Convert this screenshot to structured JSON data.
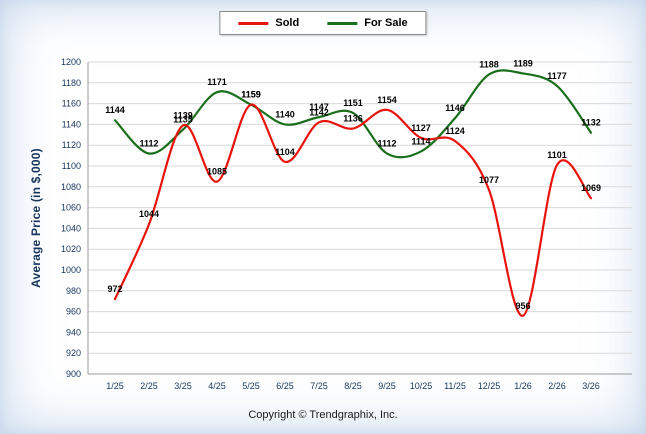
{
  "page": {
    "copyright": "Copyright © Trendgraphix, Inc."
  },
  "legend": [
    {
      "label": "Sold",
      "color": "#e8140c"
    },
    {
      "label": "For Sale",
      "color": "#1a6f1a"
    }
  ],
  "axis": {
    "text_color": "#17365d",
    "grid_color": "#d9d9d9",
    "axis_line_color": "#9a9a9a",
    "label_color": "#000000"
  },
  "chart_data": {
    "type": "line",
    "title": "",
    "xlabel": "",
    "ylabel": "Average Price (in $,000)",
    "ylim": [
      900,
      1200
    ],
    "ytick_step": 20,
    "grid": true,
    "legend_position": "top-center",
    "categories": [
      "1/25",
      "2/25",
      "3/25",
      "4/25",
      "5/25",
      "6/25",
      "7/25",
      "8/25",
      "9/25",
      "10/25",
      "11/25",
      "12/25",
      "1/26",
      "2/26",
      "3/26"
    ],
    "series": [
      {
        "name": "Sold",
        "color": "#e8140c",
        "values": [
          972,
          1044,
          1139,
          1085,
          1159,
          1104,
          1142,
          1136,
          1154,
          1127,
          1124,
          1077,
          956,
          1101,
          1069
        ]
      },
      {
        "name": "For Sale",
        "color": "#1a6f1a",
        "values": [
          1144,
          1112,
          1135,
          1171,
          1159,
          1140,
          1147,
          1151,
          1112,
          1114,
          1146,
          1188,
          1189,
          1177,
          1132
        ]
      }
    ]
  }
}
